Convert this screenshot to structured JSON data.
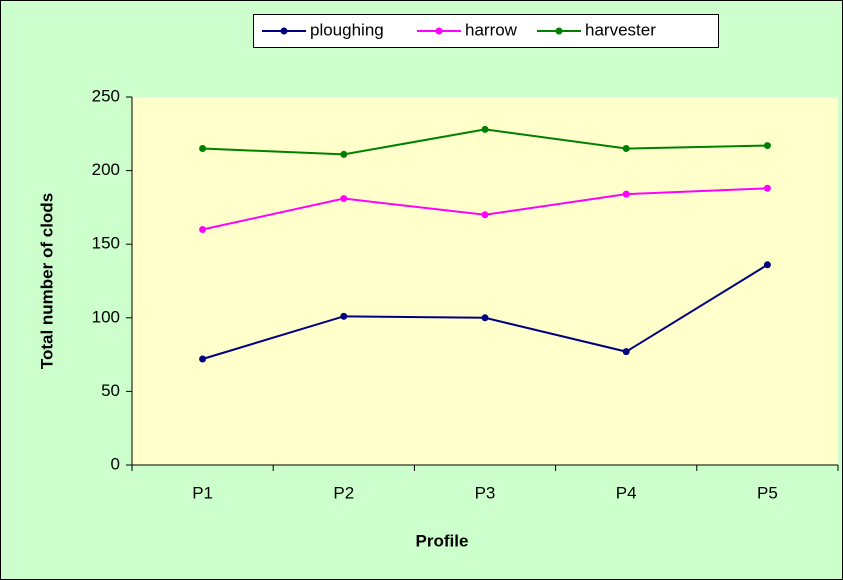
{
  "chart_data": {
    "type": "line",
    "x_label": "Profile",
    "y_label": "Total  number of clods",
    "categories": [
      "P1",
      "P2",
      "P3",
      "P4",
      "P5"
    ],
    "series": [
      {
        "name": "ploughing",
        "color": "#000080",
        "values": [
          72,
          101,
          100,
          77,
          136
        ]
      },
      {
        "name": "harrow",
        "color": "#ff00ff",
        "values": [
          160,
          181,
          170,
          184,
          188
        ]
      },
      {
        "name": "harvester",
        "color": "#008000",
        "values": [
          215,
          211,
          228,
          215,
          217
        ]
      }
    ],
    "ylim": [
      0,
      250
    ],
    "yticks": [
      0,
      50,
      100,
      150,
      200,
      250
    ],
    "grid": false,
    "legend": "top"
  }
}
